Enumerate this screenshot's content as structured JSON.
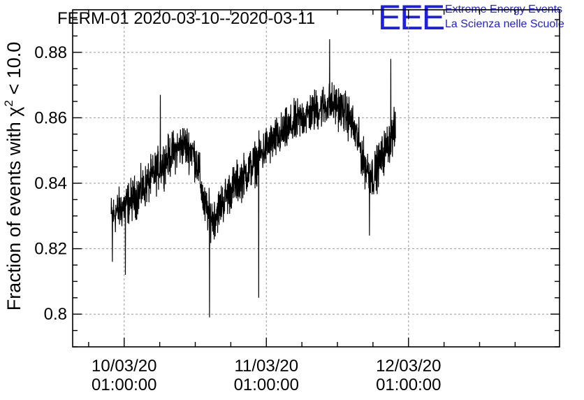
{
  "chart_data": {
    "type": "line",
    "title": "FERM-01 2020-03-10--2020-03-11",
    "ylabel_prefix": "Fraction of events with ",
    "ylabel_chi": "χ",
    "ylabel_sup": "2",
    "ylabel_suffix": " < 10.0",
    "xlabel": "",
    "logo": {
      "letters": "EEE",
      "line1": "Extreme Energy Events",
      "line2": "La Scienza nelle Scuole"
    },
    "ylim": [
      0.79,
      0.893
    ],
    "xlim_hours": [
      -8.7,
      73.5
    ],
    "grid": true,
    "yticks": [
      0.8,
      0.82,
      0.84,
      0.86,
      0.88
    ],
    "ytick_labels": [
      "0.8",
      "0.82",
      "0.84",
      "0.86",
      "0.88"
    ],
    "xticks": [
      {
        "hour": 0,
        "line1": "10/03/20",
        "line2": "01:00:00"
      },
      {
        "hour": 24,
        "line1": "11/03/20",
        "line2": "01:00:00"
      },
      {
        "hour": 48,
        "line1": "12/03/20",
        "line2": "01:00:00"
      }
    ],
    "series": [
      {
        "x_start_hour": -2.2,
        "x_end_hour": 45.8,
        "trend_knots": [
          [
            -2.2,
            0.83
          ],
          [
            0,
            0.833
          ],
          [
            2,
            0.836
          ],
          [
            4,
            0.84
          ],
          [
            6,
            0.845
          ],
          [
            8,
            0.849
          ],
          [
            10,
            0.852
          ],
          [
            11.5,
            0.85
          ],
          [
            12.5,
            0.845
          ],
          [
            13.5,
            0.833
          ],
          [
            15,
            0.829
          ],
          [
            16.5,
            0.834
          ],
          [
            18,
            0.838
          ],
          [
            20,
            0.842
          ],
          [
            22,
            0.846
          ],
          [
            24,
            0.851
          ],
          [
            26,
            0.854
          ],
          [
            28,
            0.857
          ],
          [
            30,
            0.86
          ],
          [
            32,
            0.862
          ],
          [
            34,
            0.864
          ],
          [
            36,
            0.864
          ],
          [
            38,
            0.86
          ],
          [
            39.5,
            0.853
          ],
          [
            40.5,
            0.846
          ],
          [
            42,
            0.842
          ],
          [
            43.5,
            0.848
          ],
          [
            45,
            0.854
          ],
          [
            45.8,
            0.856
          ]
        ],
        "noise_amplitude": 0.006,
        "n_points": 1400,
        "spikes": [
          [
            -2.0,
            0.816
          ],
          [
            0.2,
            0.812
          ],
          [
            14.4,
            0.799
          ],
          [
            22.7,
            0.805
          ],
          [
            34.7,
            0.884
          ],
          [
            41.4,
            0.824
          ],
          [
            45.0,
            0.878
          ],
          [
            6.1,
            0.867
          ]
        ]
      }
    ]
  }
}
